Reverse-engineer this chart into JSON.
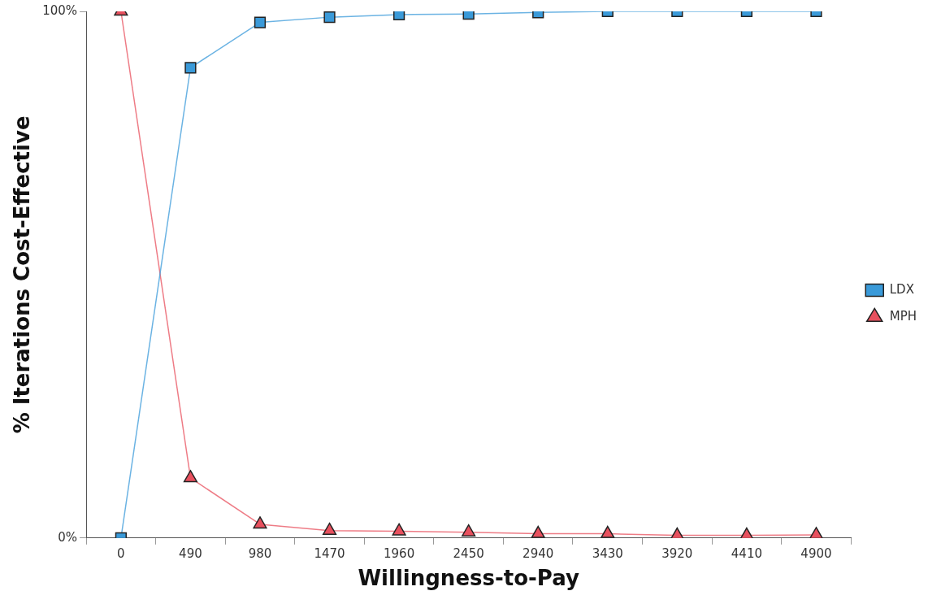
{
  "chart_data": {
    "type": "line",
    "xlabel": "Willingness-to-Pay",
    "ylabel": "% Iterations Cost-Effective",
    "categories": [
      "0",
      "490",
      "980",
      "1470",
      "1960",
      "2450",
      "2940",
      "3430",
      "3920",
      "4410",
      "4900"
    ],
    "series": [
      {
        "name": "LDX",
        "color": "#3a9ad9",
        "marker": "square",
        "values": [
          0,
          89.3,
          97.9,
          98.9,
          99.4,
          99.5,
          99.8,
          100,
          100,
          100,
          100
        ]
      },
      {
        "name": "MPH",
        "color": "#e8505e",
        "marker": "triangle",
        "values": [
          100,
          11.4,
          2.6,
          1.4,
          1.3,
          1.1,
          0.8,
          0.8,
          0.5,
          0.5,
          0.6
        ]
      }
    ],
    "ylim": [
      0,
      100
    ],
    "yticks": [
      {
        "value": 0,
        "label": "0%"
      },
      {
        "value": 100,
        "label": "100%"
      }
    ],
    "grid": false,
    "legend": "right",
    "line_style": "solid"
  }
}
